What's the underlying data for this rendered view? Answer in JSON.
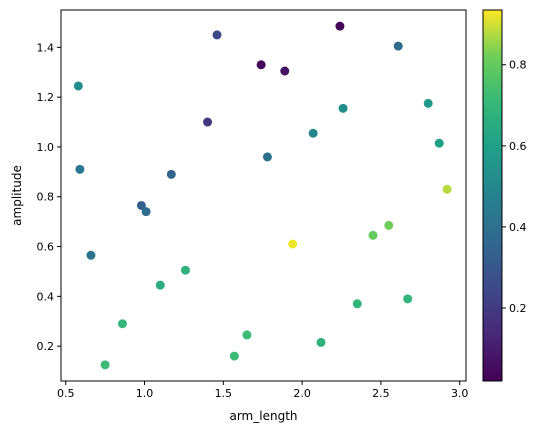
{
  "chart_data": {
    "type": "scatter",
    "xlabel": "arm_length",
    "ylabel": "amplitude",
    "xlim": [
      0.47,
      3.04
    ],
    "ylim": [
      0.06,
      1.55
    ],
    "xticks": [
      "0.5",
      "1.0",
      "1.5",
      "2.0",
      "2.5",
      "3.0"
    ],
    "yticks": [
      "0.2",
      "0.4",
      "0.6",
      "0.8",
      "1.0",
      "1.2",
      "1.4"
    ],
    "grid": false,
    "colorbar": {
      "colormap": "viridis",
      "range": [
        0.02,
        0.935
      ],
      "ticks": [
        "0.2",
        "0.4",
        "0.6",
        "0.8"
      ]
    },
    "points": [
      {
        "x": 2.24,
        "y": 1.485,
        "c": 0.03
      },
      {
        "x": 1.74,
        "y": 1.33,
        "c": 0.04
      },
      {
        "x": 1.89,
        "y": 1.305,
        "c": 0.07
      },
      {
        "x": 1.46,
        "y": 1.45,
        "c": 0.25
      },
      {
        "x": 1.4,
        "y": 1.1,
        "c": 0.19
      },
      {
        "x": 2.61,
        "y": 1.405,
        "c": 0.38
      },
      {
        "x": 0.58,
        "y": 1.245,
        "c": 0.52
      },
      {
        "x": 2.26,
        "y": 1.155,
        "c": 0.53
      },
      {
        "x": 2.8,
        "y": 1.175,
        "c": 0.57
      },
      {
        "x": 2.07,
        "y": 1.055,
        "c": 0.49
      },
      {
        "x": 2.87,
        "y": 1.015,
        "c": 0.6
      },
      {
        "x": 1.78,
        "y": 0.96,
        "c": 0.4
      },
      {
        "x": 0.59,
        "y": 0.91,
        "c": 0.42
      },
      {
        "x": 1.17,
        "y": 0.89,
        "c": 0.35
      },
      {
        "x": 0.98,
        "y": 0.765,
        "c": 0.34
      },
      {
        "x": 1.01,
        "y": 0.74,
        "c": 0.38
      },
      {
        "x": 0.66,
        "y": 0.565,
        "c": 0.41
      },
      {
        "x": 2.92,
        "y": 0.83,
        "c": 0.88
      },
      {
        "x": 2.55,
        "y": 0.685,
        "c": 0.82
      },
      {
        "x": 2.45,
        "y": 0.645,
        "c": 0.8
      },
      {
        "x": 1.94,
        "y": 0.61,
        "c": 0.92
      },
      {
        "x": 1.26,
        "y": 0.505,
        "c": 0.68
      },
      {
        "x": 1.1,
        "y": 0.445,
        "c": 0.66
      },
      {
        "x": 2.67,
        "y": 0.39,
        "c": 0.7
      },
      {
        "x": 2.35,
        "y": 0.37,
        "c": 0.7
      },
      {
        "x": 0.86,
        "y": 0.29,
        "c": 0.7
      },
      {
        "x": 1.65,
        "y": 0.245,
        "c": 0.72
      },
      {
        "x": 2.12,
        "y": 0.215,
        "c": 0.68
      },
      {
        "x": 1.57,
        "y": 0.16,
        "c": 0.72
      },
      {
        "x": 0.75,
        "y": 0.125,
        "c": 0.72
      }
    ]
  }
}
